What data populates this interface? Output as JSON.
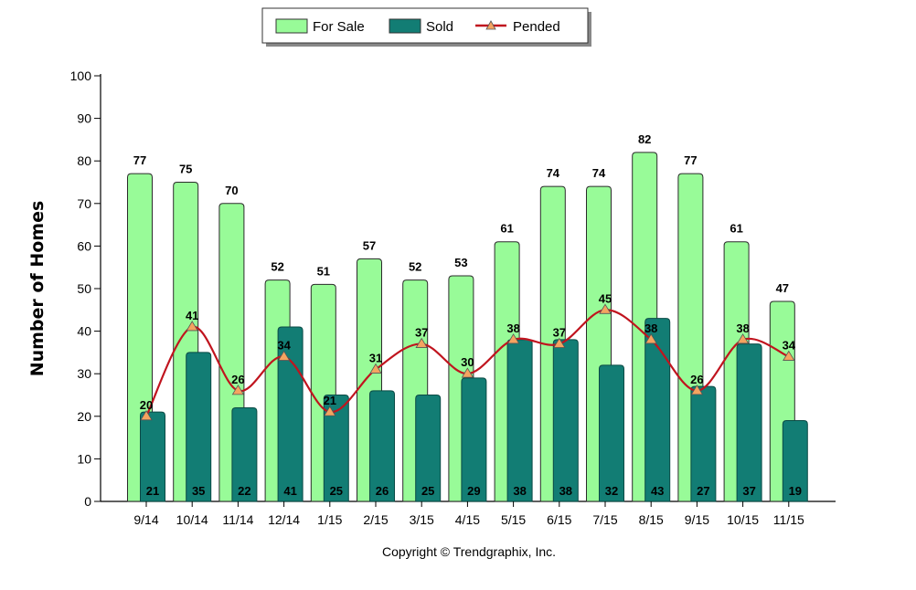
{
  "chart_data": {
    "type": "bar",
    "categories": [
      "9/14",
      "10/14",
      "11/14",
      "12/14",
      "1/15",
      "2/15",
      "3/15",
      "4/15",
      "5/15",
      "6/15",
      "7/15",
      "8/15",
      "9/15",
      "10/15",
      "11/15"
    ],
    "series": [
      {
        "name": "For Sale",
        "type": "bar",
        "color": "#98fb98",
        "values": [
          77,
          75,
          70,
          52,
          51,
          57,
          52,
          53,
          61,
          74,
          74,
          82,
          77,
          61,
          47
        ]
      },
      {
        "name": "Sold",
        "type": "bar",
        "color": "#127d74",
        "values": [
          21,
          35,
          22,
          41,
          25,
          26,
          25,
          29,
          38,
          38,
          32,
          43,
          27,
          37,
          19
        ]
      },
      {
        "name": "Pended",
        "type": "line",
        "color": "#c0141e",
        "marker_color": "#f4a460",
        "values": [
          20,
          41,
          26,
          34,
          21,
          31,
          37,
          30,
          38,
          37,
          45,
          38,
          26,
          38,
          34
        ]
      }
    ],
    "ylabel": "Number of Homes",
    "xlabel": "",
    "ylim": [
      0,
      100
    ],
    "yticks": [
      0,
      10,
      20,
      30,
      40,
      50,
      60,
      70,
      80,
      90,
      100
    ],
    "legend_position": "top-center",
    "grid": false
  },
  "footer": "Copyright © Trendgraphix, Inc."
}
